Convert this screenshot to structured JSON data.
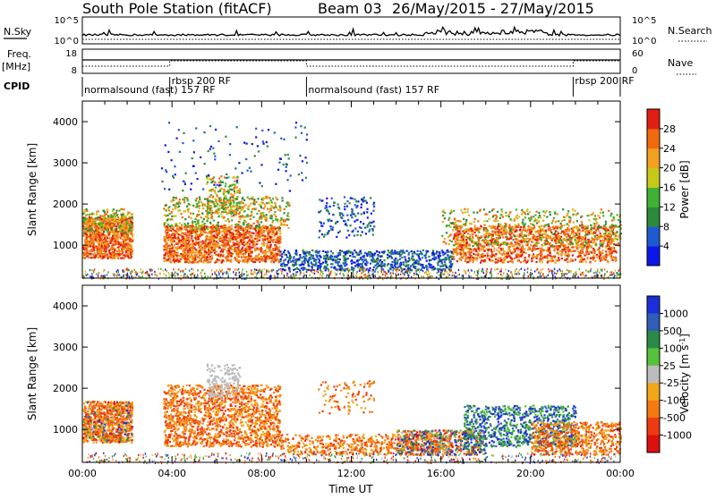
{
  "header": {
    "station": "South Pole Station (fitACF)",
    "beam": "Beam 03",
    "dates": "26/May/2015 - 27/May/2015"
  },
  "strips": {
    "nsky_label": "N.Sky",
    "nsky_ticks": [
      "10^5",
      "10^0"
    ],
    "nsearch_label": "N.Search",
    "nsearch_ticks": [
      "10^5",
      "10^0"
    ],
    "freq_label": "Freq.",
    "freq_unit": "[MHz]",
    "freq_ticks": [
      "18",
      "8"
    ],
    "nave_label": "Nave",
    "nave_ticks": [
      "60",
      "0"
    ],
    "cpid_label": "CPID",
    "cpid_segments": [
      {
        "label": "normalsound (fast) 157 RF",
        "start_h": 0.0,
        "end_h": 3.9
      },
      {
        "label": "rbsp 200 RF",
        "start_h": 3.9,
        "end_h": 10.0
      },
      {
        "label": "normalsound (fast) 157 RF",
        "start_h": 10.0,
        "end_h": 21.9
      },
      {
        "label": "rbsp 200 RF",
        "start_h": 21.9,
        "end_h": 24.0
      }
    ]
  },
  "power_colorbar": {
    "title": "Power [dB]",
    "ticks": [
      "4",
      "8",
      "12",
      "16",
      "20",
      "24",
      "28"
    ],
    "colors": [
      "#0a17e8",
      "#1f5ad1",
      "#2c8a3b",
      "#3fb233",
      "#c6c81a",
      "#f1a020",
      "#f26a0e",
      "#e01e12"
    ]
  },
  "velocity_colorbar": {
    "title": "Velocity [m s",
    "title_sup": "-1",
    "title_end": "]",
    "ticks": [
      "1000",
      "500",
      "100",
      "25",
      "-25",
      "-100",
      "-500",
      "-1000"
    ],
    "colors": [
      "#1b2ed8",
      "#2f5db8",
      "#2a8b48",
      "#56c13b",
      "#bcbcbc",
      "#f2a61b",
      "#f47a10",
      "#ee3a12",
      "#dd1010"
    ]
  },
  "chart_data": [
    {
      "type": "heatmap",
      "title": "",
      "xlabel": "",
      "ylabel": "Slant Range [km]",
      "xlim": [
        0,
        24
      ],
      "ylim": [
        200,
        4500
      ],
      "yticks": [
        1000,
        2000,
        3000,
        4000
      ],
      "colorbar_label": "Power [dB]",
      "colorbar_range": [
        0,
        32
      ]
    },
    {
      "type": "heatmap",
      "title": "",
      "xlabel": "Time UT",
      "ylabel": "Slant Range [km]",
      "xlim": [
        0,
        24
      ],
      "ylim": [
        200,
        4500
      ],
      "xticks": [
        "00:00",
        "04:00",
        "08:00",
        "12:00",
        "16:00",
        "20:00",
        "00:00"
      ],
      "yticks": [
        1000,
        2000,
        3000,
        4000
      ],
      "colorbar_label": "Velocity [m s-1]",
      "colorbar_range": [
        -1000,
        1000
      ]
    }
  ]
}
